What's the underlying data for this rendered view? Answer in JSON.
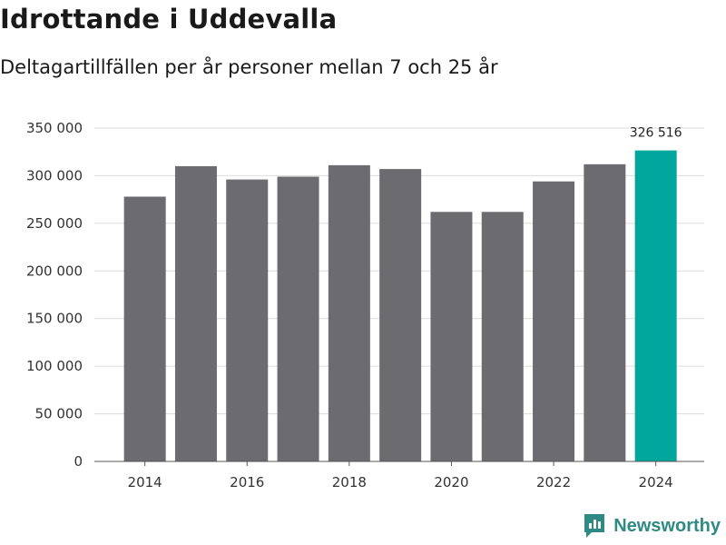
{
  "header": {
    "title": "Idrottande i Uddevalla",
    "subtitle": "Deltagartillfällen per år personer mellan 7 och 25 år"
  },
  "brand": {
    "name": "Newsworthy",
    "icon": "newsworthy-logo-icon",
    "color": "#2e8a83"
  },
  "chart_data": {
    "type": "bar",
    "title": "Idrottande i Uddevalla",
    "subtitle": "Deltagartillfällen per år personer mellan 7 och 25 år",
    "xlabel": "",
    "ylabel": "",
    "categories": [
      "2014",
      "2015",
      "2016",
      "2017",
      "2018",
      "2019",
      "2020",
      "2021",
      "2022",
      "2023",
      "2024"
    ],
    "values": [
      278000,
      310000,
      296000,
      299000,
      311000,
      307000,
      262000,
      262000,
      294000,
      312000,
      326516
    ],
    "x_tick_labels": [
      "2014",
      "2016",
      "2018",
      "2020",
      "2022",
      "2024"
    ],
    "ylim": [
      0,
      350000
    ],
    "y_ticks": [
      0,
      50000,
      100000,
      150000,
      200000,
      250000,
      300000,
      350000
    ],
    "y_tick_labels": [
      "0",
      "50 000",
      "100 000",
      "150 000",
      "200 000",
      "250 000",
      "300 000",
      "350 000"
    ],
    "grid": true,
    "bar_color": "#6c6b70",
    "highlight_color": "#00a59b",
    "highlight_index": 10,
    "annotations": [
      {
        "category": "2024",
        "label": "326 516"
      }
    ]
  }
}
